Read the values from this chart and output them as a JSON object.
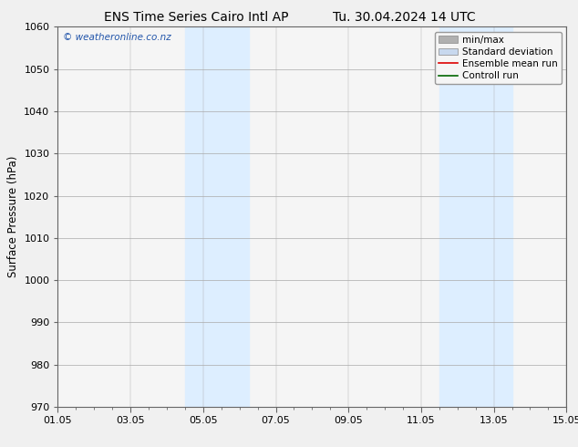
{
  "title_left": "ENS Time Series Cairo Intl AP",
  "title_right": "Tu. 30.04.2024 14 UTC",
  "ylabel": "Surface Pressure (hPa)",
  "ylim": [
    970,
    1060
  ],
  "yticks": [
    970,
    980,
    990,
    1000,
    1010,
    1020,
    1030,
    1040,
    1050,
    1060
  ],
  "xlim_start": 0,
  "xlim_end": 14,
  "xtick_labels": [
    "01.05",
    "03.05",
    "05.05",
    "07.05",
    "09.05",
    "11.05",
    "13.05",
    "15.05"
  ],
  "xtick_positions": [
    0,
    2,
    4,
    6,
    8,
    10,
    12,
    14
  ],
  "shaded_bands": [
    {
      "x_start": 3.5,
      "x_end": 5.25,
      "color": "#ddeeff"
    },
    {
      "x_start": 10.5,
      "x_end": 12.5,
      "color": "#ddeeff"
    }
  ],
  "watermark_text": "© weatheronline.co.nz",
  "watermark_color": "#2255aa",
  "legend_entries": [
    {
      "label": "min/max",
      "color": "#b0b0b0",
      "type": "band"
    },
    {
      "label": "Standard deviation",
      "color": "#c8d8ee",
      "type": "band"
    },
    {
      "label": "Ensemble mean run",
      "color": "#dd0000",
      "type": "line"
    },
    {
      "label": "Controll run",
      "color": "#006600",
      "type": "line"
    }
  ],
  "bg_color": "#f0f0f0",
  "plot_bg_color": "#f5f5f5",
  "grid_color": "#aaaaaa",
  "spine_color": "#666666",
  "title_fontsize": 10,
  "axis_label_fontsize": 8.5,
  "tick_fontsize": 8,
  "legend_fontsize": 7.5,
  "watermark_fontsize": 7.5
}
